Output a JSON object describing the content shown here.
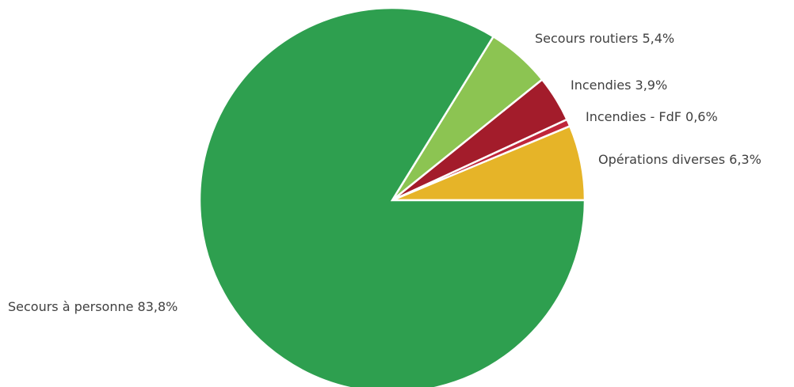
{
  "chart_data": {
    "type": "pie",
    "title": "",
    "slices": [
      {
        "label": "Opérations diverses 6,3%",
        "name": "Opérations diverses",
        "value": 6.3,
        "color": "#e6b428"
      },
      {
        "label": "Incendies - FdF 0,6%",
        "name": "Incendies - FdF",
        "value": 0.6,
        "color": "#c0263a"
      },
      {
        "label": "Incendies 3,9%",
        "name": "Incendies",
        "value": 3.9,
        "color": "#a31c2b"
      },
      {
        "label": "Secours routiers 5,4%",
        "name": "Secours routiers",
        "value": 5.4,
        "color": "#8cc452"
      },
      {
        "label": "Secours à personne 83,8%",
        "name": "Secours à personne",
        "value": 83.8,
        "color": "#2e9f4f"
      }
    ],
    "start_direction": "3 o'clock",
    "direction": "counterclockwise",
    "legend": "none (direct labels)"
  }
}
